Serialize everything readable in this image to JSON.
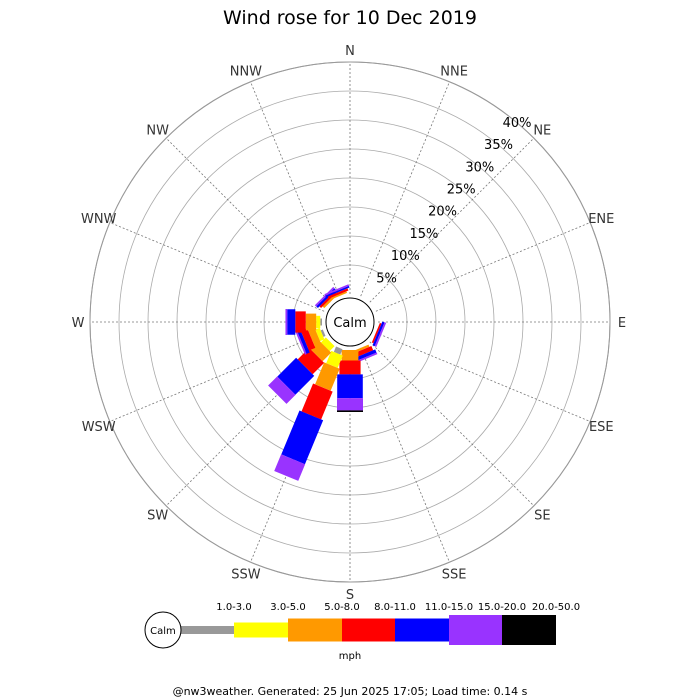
{
  "chart_data": {
    "type": "wind-rose",
    "title": "Wind rose for 10 Dec 2019",
    "unit": "mph",
    "calm_label": "Calm",
    "directions": [
      "N",
      "NNE",
      "NE",
      "ENE",
      "E",
      "ESE",
      "SE",
      "SSE",
      "S",
      "SSW",
      "SW",
      "WSW",
      "W",
      "WNW",
      "NW",
      "NNW"
    ],
    "radial_ticks": [
      "5%",
      "10%",
      "15%",
      "20%",
      "25%",
      "30%",
      "35%",
      "40%"
    ],
    "radial_values": [
      5,
      10,
      15,
      20,
      25,
      30,
      35,
      40
    ],
    "rmax": 40,
    "speed_bins": [
      "1.0-3.0",
      "3.0-5.0",
      "5.0-8.0",
      "8.0-11.0",
      "11.0-15.0",
      "15.0-20.0",
      "20.0-50.0"
    ],
    "colors": [
      "#999999",
      "#ffff00",
      "#ff9900",
      "#ff0000",
      "#0000ff",
      "#9933ff",
      "#000000"
    ],
    "series": [
      {
        "direction": "N",
        "values": [
          0,
          0,
          0,
          0,
          0,
          0,
          0
        ]
      },
      {
        "direction": "NNE",
        "values": [
          0,
          0,
          0,
          0,
          0,
          0,
          0
        ]
      },
      {
        "direction": "NE",
        "values": [
          0,
          0,
          0,
          0,
          0,
          0,
          0
        ]
      },
      {
        "direction": "ENE",
        "values": [
          0,
          0,
          0,
          0,
          0,
          0,
          0
        ]
      },
      {
        "direction": "E",
        "values": [
          0,
          0,
          0,
          0,
          0,
          0,
          0
        ]
      },
      {
        "direction": "ESE",
        "values": [
          0,
          0,
          0,
          0.3,
          0.4,
          0.3,
          0
        ]
      },
      {
        "direction": "SE",
        "values": [
          0,
          0,
          0,
          0,
          0,
          0,
          0
        ]
      },
      {
        "direction": "SSE",
        "values": [
          0,
          0,
          0.4,
          0.8,
          0.6,
          0.3,
          0
        ]
      },
      {
        "direction": "S",
        "values": [
          0,
          0,
          1.8,
          2.4,
          4.1,
          2.1,
          0.3
        ]
      },
      {
        "direction": "SSW",
        "values": [
          1.0,
          2.3,
          4.1,
          5.2,
          8.2,
          3.1,
          0
        ]
      },
      {
        "direction": "SW",
        "values": [
          0,
          1.2,
          2.1,
          2.8,
          4.6,
          2.2,
          0
        ]
      },
      {
        "direction": "WSW",
        "values": [
          0.4,
          0.8,
          1.2,
          1.2,
          0.6,
          0.3,
          0
        ]
      },
      {
        "direction": "W",
        "values": [
          0.3,
          0.7,
          1.8,
          1.8,
          1.4,
          0.3,
          0
        ]
      },
      {
        "direction": "WNW",
        "values": [
          0,
          0,
          0,
          0,
          0,
          0,
          0
        ]
      },
      {
        "direction": "NW",
        "values": [
          0,
          0,
          0.4,
          0.4,
          0.4,
          0.3,
          0
        ]
      },
      {
        "direction": "NNW",
        "values": [
          0,
          0,
          0.3,
          0.4,
          0.3,
          0.3,
          0
        ]
      }
    ]
  },
  "footer": "@nw3weather. Generated: 25 Jun 2025 17:05; Load time: 0.14 s"
}
